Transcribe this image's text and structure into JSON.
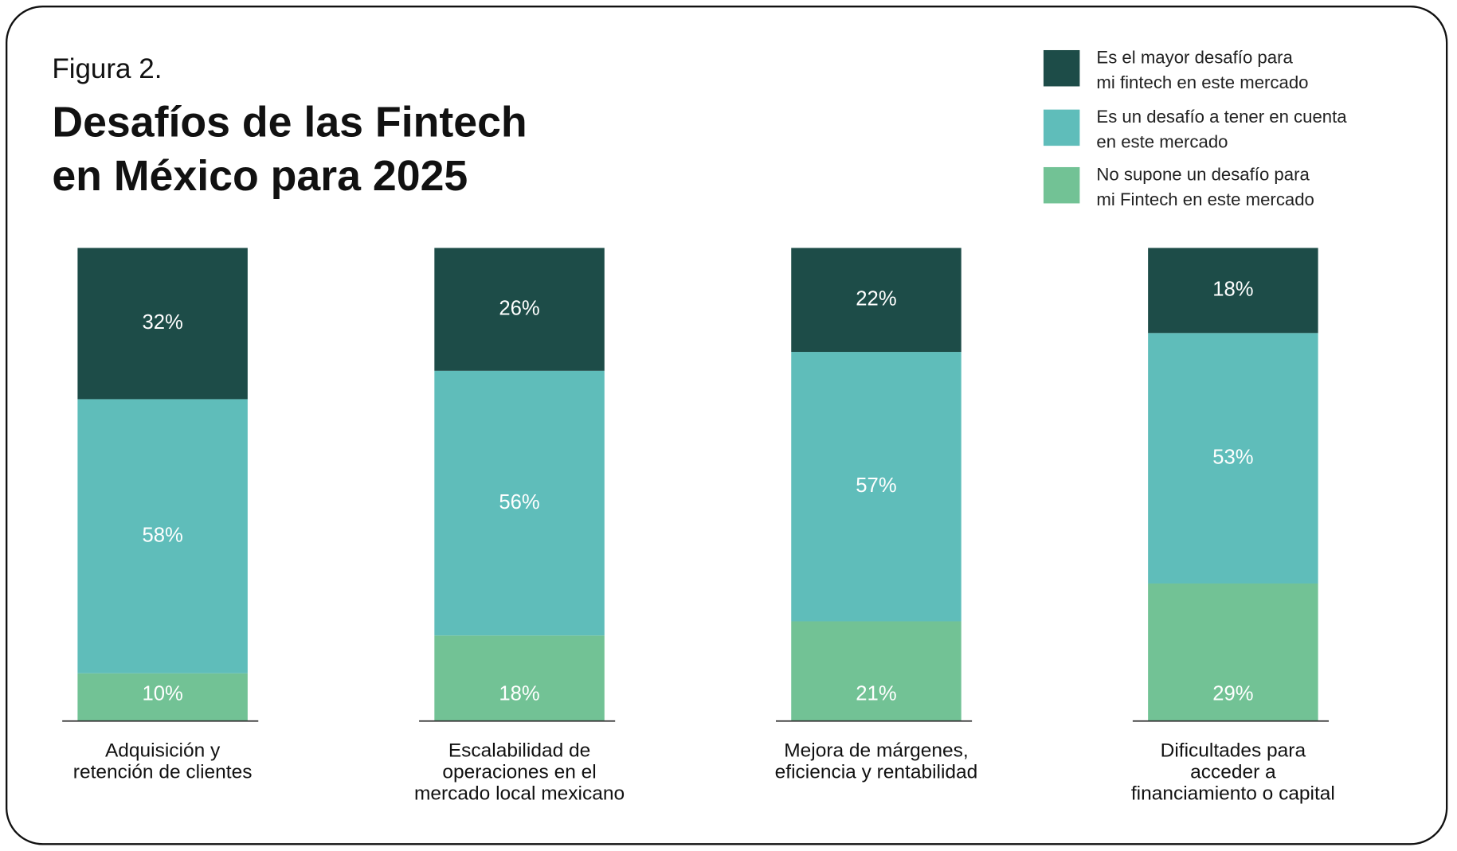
{
  "chart_data": {
    "type": "stacked-bar",
    "subtitle": "Figura 2.",
    "title": "Desafíos de las Fintech\nen México para 2025",
    "categories": [
      "Adquisición y\nretención de clientes",
      "Escalabilidad de\noperaciones en el\nmercado local mexicano",
      "Mejora de márgenes,\neficiencia y rentabilidad",
      "Dificultades para\nacceder a\nfinanciamiento o capital"
    ],
    "series": [
      {
        "name": "Es el mayor desafío para\nmi fintech en este mercado",
        "color": "#1d4c48",
        "values": [
          32,
          26,
          22,
          18
        ],
        "value_labels": [
          "32%",
          "26%",
          "22%",
          "18%"
        ]
      },
      {
        "name": "Es un desafío a tener en cuenta\nen este mercado",
        "color": "#5fbdba",
        "values": [
          58,
          56,
          57,
          53
        ],
        "value_labels": [
          "58%",
          "56%",
          "57%",
          "53%"
        ]
      },
      {
        "name": "No supone un desafío para\nmi Fintech en este mercado",
        "color": "#72c295",
        "values": [
          10,
          18,
          21,
          29
        ],
        "value_labels": [
          "10%",
          "18%",
          "21%",
          "29%"
        ]
      }
    ],
    "legend": "top-right"
  }
}
